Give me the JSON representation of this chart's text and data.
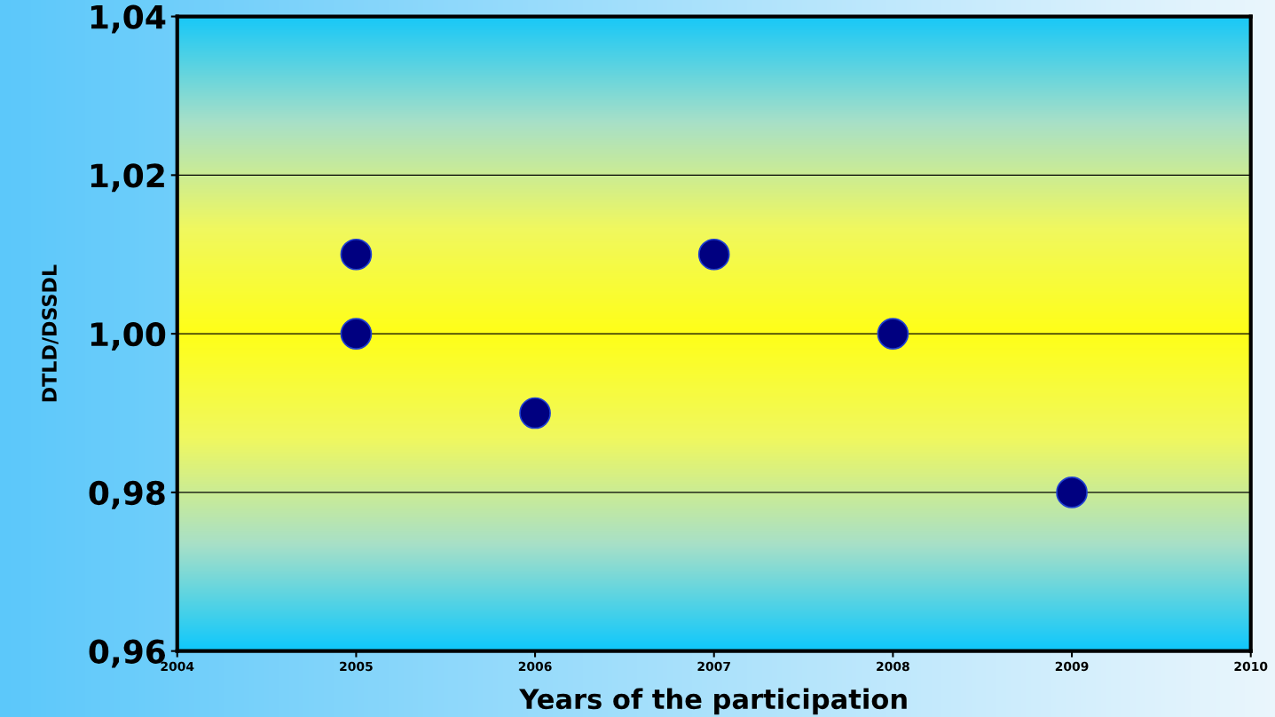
{
  "chart_data": {
    "type": "scatter",
    "xlabel": "Years of the participation",
    "ylabel": "DTLD/DSSDL",
    "series": [
      {
        "color": "#000080",
        "x": [
          2005,
          2005,
          2006,
          2007,
          2008,
          2009
        ],
        "values": [
          1.01,
          1.0,
          0.99,
          1.01,
          1.0,
          0.98
        ]
      }
    ],
    "marker": "circle",
    "xlim": [
      2004,
      2010
    ],
    "xticks": [
      2004,
      2005,
      2006,
      2007,
      2008,
      2009,
      2010
    ],
    "ylim": [
      0.96,
      1.04
    ],
    "yticks": [
      {
        "value": 0.96,
        "label": "0,96"
      },
      {
        "value": 0.98,
        "label": "0,98"
      },
      {
        "value": 1.0,
        "label": "1,00"
      },
      {
        "value": 1.02,
        "label": "1,02"
      },
      {
        "value": 1.04,
        "label": "1,04"
      }
    ],
    "grid": "y"
  }
}
